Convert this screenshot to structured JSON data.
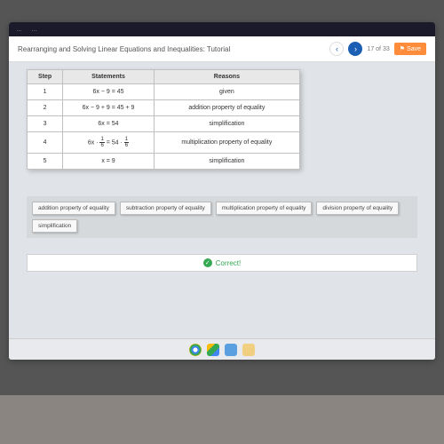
{
  "browser": {
    "tab_hint1": "…",
    "tab_hint2": "…"
  },
  "header": {
    "title": "Rearranging and Solving Linear Equations and Inequalities: Tutorial",
    "page_indicator": "17 of 33",
    "save_label": "Save"
  },
  "proof": {
    "headers": {
      "step": "Step",
      "statements": "Statements",
      "reasons": "Reasons"
    },
    "rows": [
      {
        "step": "1",
        "statement": "6x − 9 = 45",
        "reason": "given"
      },
      {
        "step": "2",
        "statement": "6x − 9 + 9 = 45 + 9",
        "reason": "addition property of equality"
      },
      {
        "step": "3",
        "statement": "6x = 54",
        "reason": "simplification"
      },
      {
        "step": "4",
        "statement": "6x · 1/6 = 54 · 1/6",
        "reason": "multiplication property of equality",
        "has_fraction": true
      },
      {
        "step": "5",
        "statement": "x = 9",
        "reason": "simplification"
      }
    ]
  },
  "bank": {
    "options": [
      "addition property of equality",
      "subtraction property of equality",
      "multiplication property of equality",
      "division property of equality",
      "simplification"
    ]
  },
  "feedback": {
    "text": "Correct!"
  },
  "colors": {
    "accent_blue": "#1a5fb4",
    "accent_orange": "#ff8c3a",
    "success": "#34a853",
    "bg": "#e0e4e8"
  }
}
